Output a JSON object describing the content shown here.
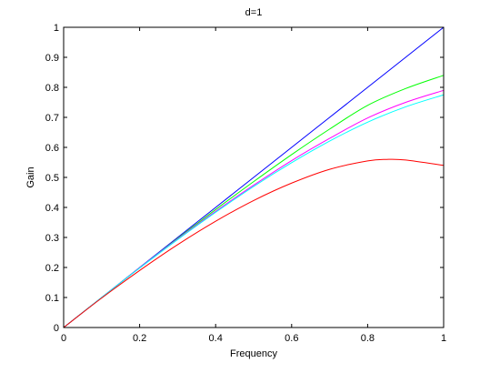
{
  "chart_data": {
    "type": "line",
    "title": "d=1",
    "xlabel": "Frequency",
    "ylabel": "Gain",
    "xlim": [
      0,
      1
    ],
    "ylim": [
      0,
      1
    ],
    "xticks": [
      0,
      0.2,
      0.4,
      0.6,
      0.8,
      1
    ],
    "xtick_labels": [
      "0",
      "0.2",
      "0.4",
      "0.6",
      "0.8",
      "1"
    ],
    "yticks": [
      0,
      0.1,
      0.2,
      0.3,
      0.4,
      0.5,
      0.6,
      0.7,
      0.8,
      0.9,
      1
    ],
    "ytick_labels": [
      "0",
      "0.1",
      "0.2",
      "0.3",
      "0.4",
      "0.5",
      "0.6",
      "0.7",
      "0.8",
      "0.9",
      "1"
    ],
    "grid": false,
    "series": [
      {
        "color": "#0000ff",
        "x": [
          0,
          0.1,
          0.2,
          0.3,
          0.4,
          0.5,
          0.6,
          0.7,
          0.8,
          0.9,
          1
        ],
        "y": [
          0,
          0.1,
          0.2,
          0.3,
          0.4,
          0.5,
          0.6,
          0.7,
          0.8,
          0.9,
          1.0
        ]
      },
      {
        "color": "#00ff00",
        "x": [
          0,
          0.1,
          0.2,
          0.3,
          0.4,
          0.5,
          0.6,
          0.7,
          0.8,
          0.9,
          1
        ],
        "y": [
          0,
          0.1,
          0.199,
          0.297,
          0.393,
          0.486,
          0.576,
          0.661,
          0.74,
          0.796,
          0.84
        ]
      },
      {
        "color": "#ff00ff",
        "x": [
          0,
          0.1,
          0.2,
          0.3,
          0.4,
          0.5,
          0.6,
          0.7,
          0.8,
          0.9,
          1
        ],
        "y": [
          0,
          0.1,
          0.199,
          0.295,
          0.387,
          0.474,
          0.556,
          0.63,
          0.698,
          0.75,
          0.79
        ]
      },
      {
        "color": "#00ffff",
        "x": [
          0,
          0.1,
          0.2,
          0.3,
          0.4,
          0.5,
          0.6,
          0.7,
          0.8,
          0.9,
          1
        ],
        "y": [
          0,
          0.1,
          0.198,
          0.293,
          0.384,
          0.47,
          0.549,
          0.621,
          0.684,
          0.735,
          0.775
        ]
      },
      {
        "color": "#ff0000",
        "x": [
          0,
          0.1,
          0.2,
          0.3,
          0.4,
          0.5,
          0.6,
          0.7,
          0.8,
          0.85,
          0.9,
          1
        ],
        "y": [
          0,
          0.098,
          0.19,
          0.276,
          0.354,
          0.423,
          0.481,
          0.527,
          0.555,
          0.56,
          0.558,
          0.54
        ]
      }
    ]
  }
}
